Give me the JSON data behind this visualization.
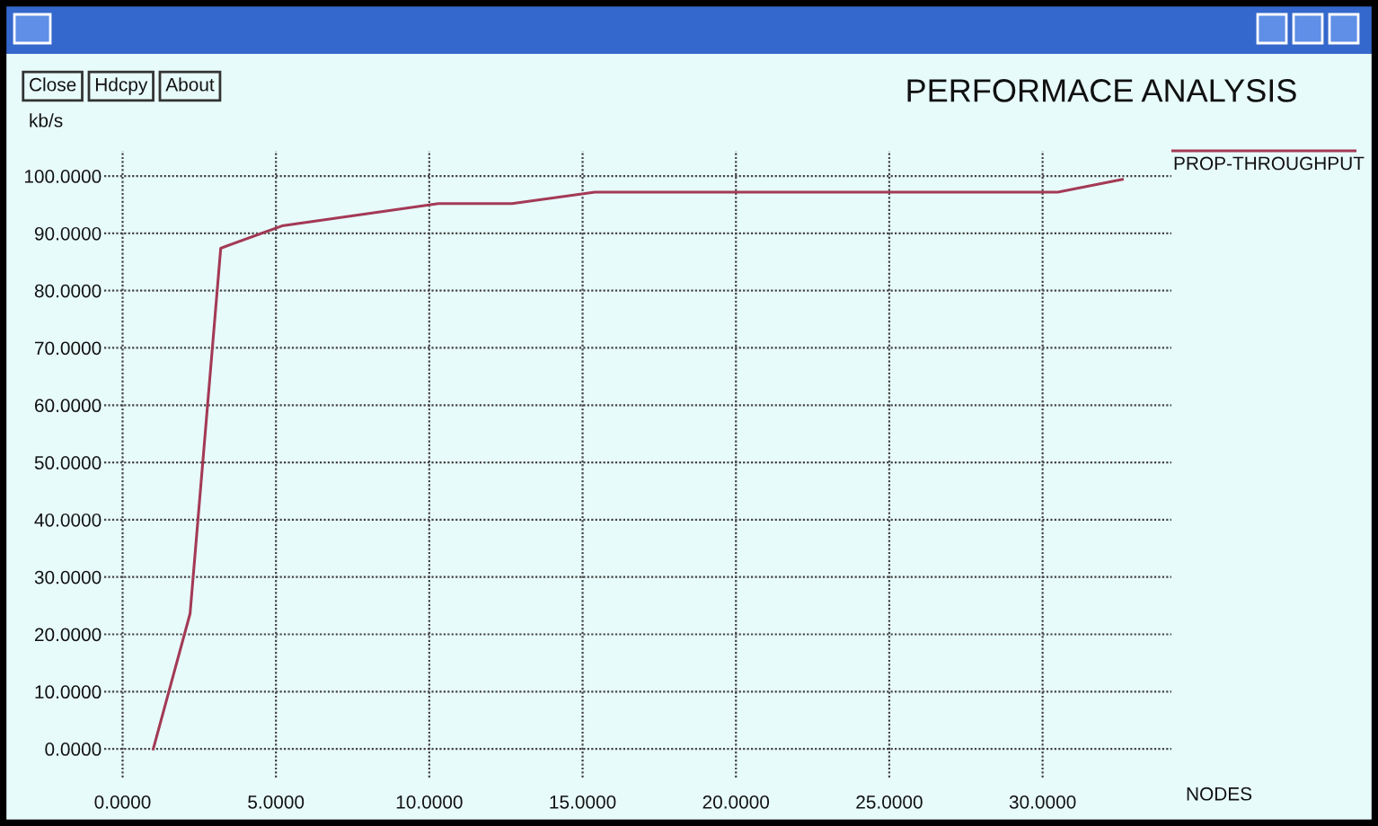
{
  "chart_data": {
    "type": "line",
    "title": "PERFORMACE ANALYSIS",
    "xlabel": "NODES",
    "ylabel": "kb/s",
    "annotations": [
      "Close",
      "Hdcpy",
      "About"
    ],
    "series": [
      {
        "name": "PROP-THROUGHPUT",
        "color": "#a33a55",
        "x": [
          1.0,
          2.2,
          3.2,
          5.2,
          10.3,
          12.7,
          15.4,
          30.5,
          32.6
        ],
        "values": [
          0,
          23.6,
          87.4,
          91.3,
          95.2,
          95.2,
          97.2,
          97.2,
          99.4
        ]
      }
    ],
    "xlim": [
      -0.6,
      34.2
    ],
    "ylim": [
      -5,
      104.4
    ],
    "xticks": [
      {
        "value": 0,
        "label": "0.0000"
      },
      {
        "value": 5,
        "label": "5.0000"
      },
      {
        "value": 10,
        "label": "10.0000"
      },
      {
        "value": 15,
        "label": "15.0000"
      },
      {
        "value": 20,
        "label": "20.0000"
      },
      {
        "value": 25,
        "label": "25.0000"
      },
      {
        "value": 30,
        "label": "30.0000"
      }
    ],
    "yticks": [
      {
        "value": 0,
        "label": "0.0000"
      },
      {
        "value": 10,
        "label": "10.0000"
      },
      {
        "value": 20,
        "label": "20.0000"
      },
      {
        "value": 30,
        "label": "30.0000"
      },
      {
        "value": 40,
        "label": "40.0000"
      },
      {
        "value": 50,
        "label": "50.0000"
      },
      {
        "value": 60,
        "label": "60.0000"
      },
      {
        "value": 70,
        "label": "70.0000"
      },
      {
        "value": 80,
        "label": "80.0000"
      },
      {
        "value": 90,
        "label": "90.0000"
      },
      {
        "value": 100,
        "label": "100.0000"
      }
    ],
    "grid": true,
    "legend": "top right"
  }
}
